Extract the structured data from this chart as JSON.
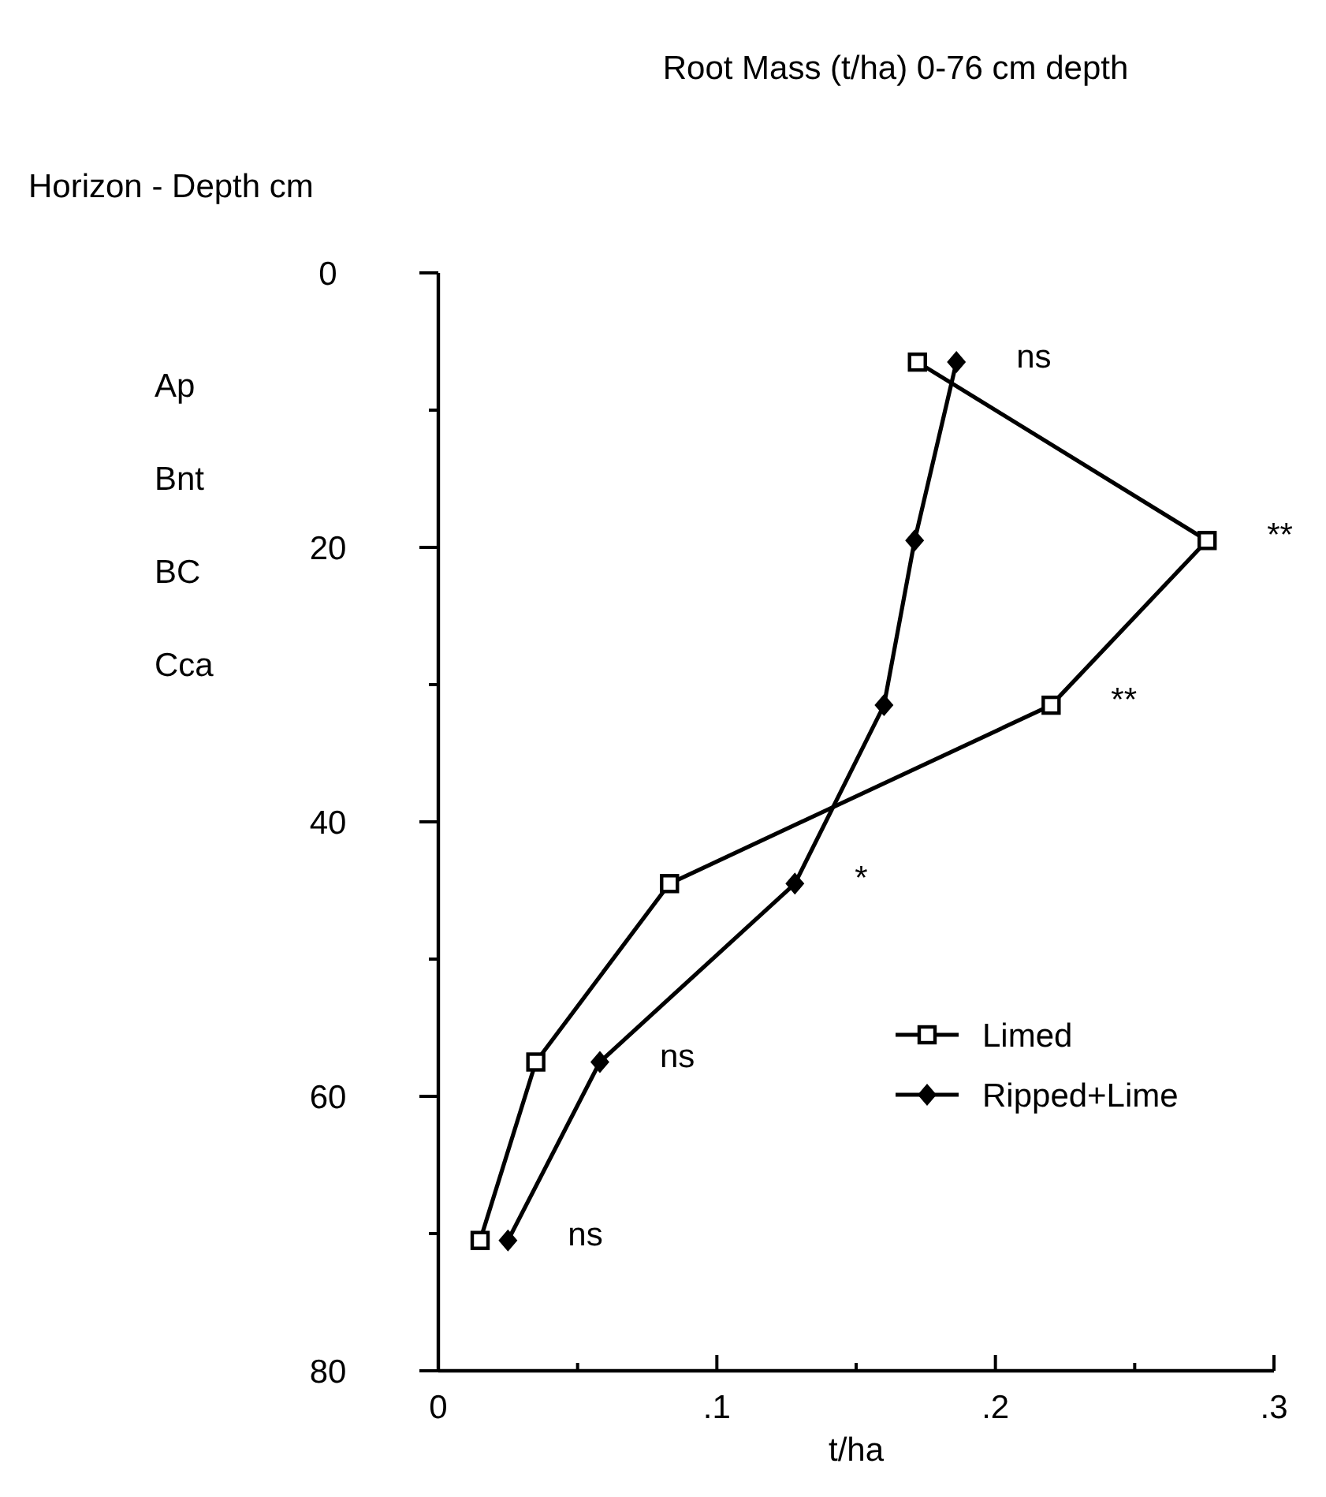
{
  "chart_data": {
    "type": "line",
    "title": "Root Mass (t/ha) 0-76 cm depth",
    "ylabel": "Horizon - Depth cm",
    "xlabel": "t/ha",
    "xlim": [
      0,
      0.3
    ],
    "xticks": [
      0,
      {
        "value": 0.05,
        "label": null
      },
      {
        "value": 0.1,
        "label": ".1"
      },
      {
        "value": 0.15,
        "label": null
      },
      {
        "value": 0.2,
        "label": ".2"
      },
      {
        "value": 0.25,
        "label": null
      },
      {
        "value": 0.3,
        "label": ".3"
      }
    ],
    "ylim": [
      80,
      0
    ],
    "yticks": [
      0,
      {
        "value": 10,
        "label": null
      },
      20,
      {
        "value": 30,
        "label": null
      },
      40,
      {
        "value": 50,
        "label": null
      },
      60,
      {
        "value": 70,
        "label": null
      },
      80
    ],
    "legend": "bottom right",
    "line_style": "solid",
    "series": [
      {
        "name": "Limed",
        "color": "#000000",
        "marker": "square",
        "x": [
          0.172,
          0.276,
          0.22,
          0.083,
          0.035,
          0.015
        ],
        "values": [
          6.5,
          19.5,
          31.5,
          44.5,
          57.5,
          70.5
        ]
      },
      {
        "name": "Ripped+Lime",
        "color": "#000000",
        "marker": "diamond",
        "x": [
          0.186,
          0.171,
          0.16,
          0.128,
          0.058,
          0.025
        ],
        "values": [
          6.5,
          19.5,
          31.5,
          44.5,
          57.5,
          70.5
        ]
      }
    ],
    "annotations": [
      "Ap",
      "Bnt",
      "BC",
      "Cca",
      {
        "text": "ns",
        "x": 0.186,
        "y": 6.5
      },
      {
        "text": "**",
        "x": 0.276,
        "y": 19.5
      },
      {
        "text": "**",
        "x": 0.22,
        "y": 31.5
      },
      {
        "text": "*",
        "x": 0.128,
        "y": 44.5
      },
      {
        "text": "ns",
        "x": 0.058,
        "y": 57.5
      },
      {
        "text": "ns",
        "x": 0.025,
        "y": 70.5
      }
    ]
  }
}
